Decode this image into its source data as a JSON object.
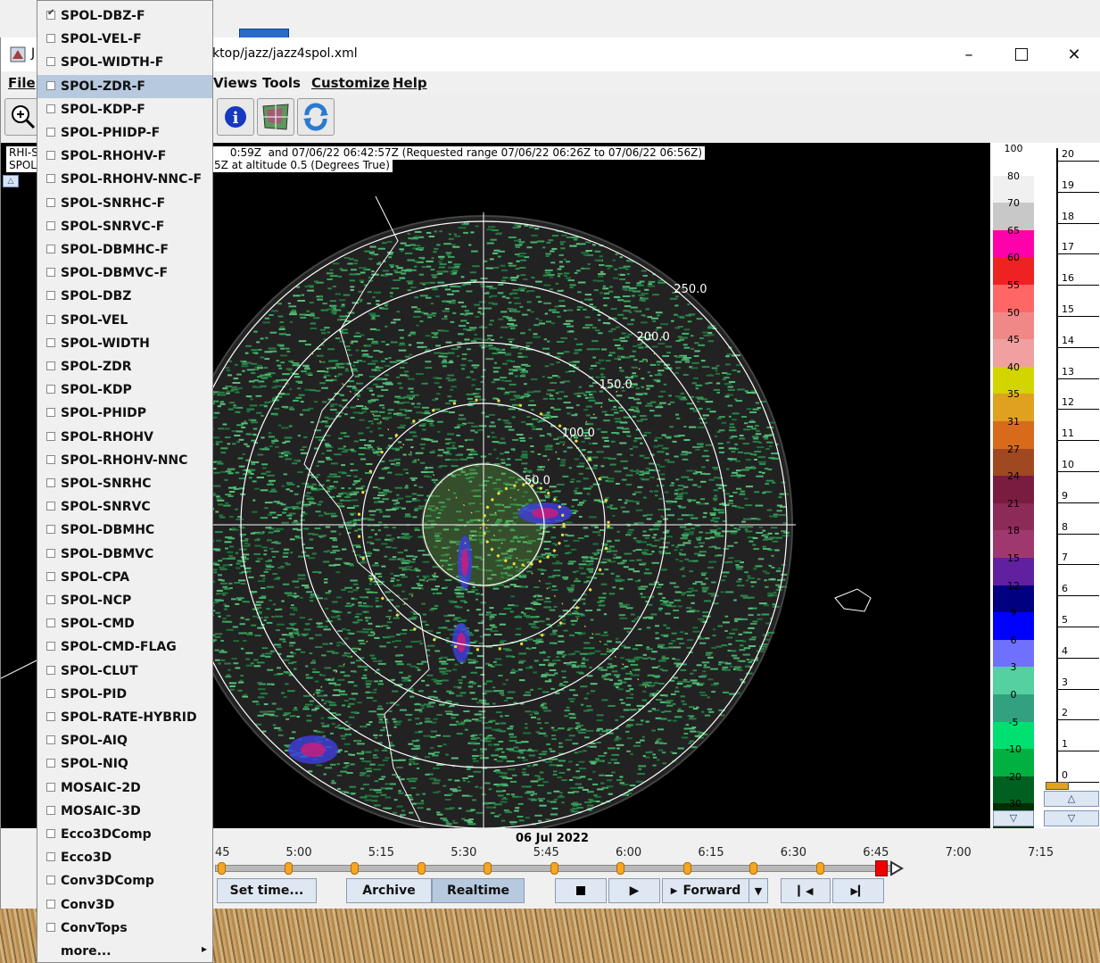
{
  "window": {
    "title_partial": "J",
    "path": "esktop/jazz/jazz4spol.xml",
    "min_icon": "minimize-icon",
    "max_icon": "maximize-icon",
    "close_icon": "close-icon"
  },
  "menubar": {
    "file": "File",
    "views": "Views",
    "tools": "Tools",
    "customize": "Customize",
    "help": "Help"
  },
  "toolbar": {
    "icons": [
      "zoom-in-icon",
      "info-icon",
      "overlay-icon",
      "refresh-icon"
    ]
  },
  "info": {
    "prefix1": "RHI-S",
    "line1": "0:59Z  and 07/06/22 06:42:57Z (Requested range 07/06/22 06:26Z to 07/06/22 06:56Z)",
    "prefix2": "SPOL",
    "line2": "5Z at altitude 0.5 (Degrees True)"
  },
  "radar": {
    "ring_labels": [
      "50.0",
      "100.0",
      "150.0",
      "200.0",
      "250.0"
    ]
  },
  "colorscale": {
    "labels": [
      "100",
      "80",
      "70",
      "65",
      "60",
      "55",
      "50",
      "45",
      "40",
      "35",
      "31",
      "27",
      "24",
      "21",
      "18",
      "15",
      "12",
      "9",
      "6",
      "3",
      "0",
      "-5",
      "-10",
      "-20",
      "-30"
    ],
    "colors": [
      "#ffffff",
      "#f0f0f0",
      "#c8c8c8",
      "#ff00aa",
      "#ee2222",
      "#ff6666",
      "#f08888",
      "#f0a0a0",
      "#d4d400",
      "#e0a020",
      "#d86a1c",
      "#a04820",
      "#7a1c40",
      "#8c2a58",
      "#a03870",
      "#6020a0",
      "#000080",
      "#0000ff",
      "#7070ff",
      "#55d0a0",
      "#33a080",
      "#00e070",
      "#00b040",
      "#006020",
      "#003000"
    ]
  },
  "altitude": {
    "labels": [
      "20",
      "19",
      "18",
      "17",
      "16",
      "15",
      "14",
      "13",
      "12",
      "11",
      "10",
      "9",
      "8",
      "7",
      "6",
      "5",
      "4",
      "3",
      "2",
      "1",
      "0"
    ]
  },
  "time": {
    "date": "06 Jul 2022",
    "labels": [
      "45",
      "5:00",
      "5:15",
      "5:30",
      "5:45",
      "6:00",
      "6:15",
      "6:30",
      "6:45",
      "7:00",
      "7:15"
    ],
    "buttons": {
      "set_time": "Set time...",
      "archive": "Archive",
      "realtime": "Realtime",
      "forward": "Forward"
    }
  },
  "field_menu": {
    "items": [
      {
        "label": "SPOL-DBZ-F",
        "checked": true
      },
      {
        "label": "SPOL-VEL-F"
      },
      {
        "label": "SPOL-WIDTH-F"
      },
      {
        "label": "SPOL-ZDR-F",
        "selected": true
      },
      {
        "label": "SPOL-KDP-F"
      },
      {
        "label": "SPOL-PHIDP-F"
      },
      {
        "label": "SPOL-RHOHV-F"
      },
      {
        "label": "SPOL-RHOHV-NNC-F"
      },
      {
        "label": "SPOL-SNRHC-F"
      },
      {
        "label": "SPOL-SNRVC-F"
      },
      {
        "label": "SPOL-DBMHC-F"
      },
      {
        "label": "SPOL-DBMVC-F"
      },
      {
        "label": "SPOL-DBZ"
      },
      {
        "label": "SPOL-VEL"
      },
      {
        "label": "SPOL-WIDTH"
      },
      {
        "label": "SPOL-ZDR"
      },
      {
        "label": "SPOL-KDP"
      },
      {
        "label": "SPOL-PHIDP"
      },
      {
        "label": "SPOL-RHOHV"
      },
      {
        "label": "SPOL-RHOHV-NNC"
      },
      {
        "label": "SPOL-SNRHC"
      },
      {
        "label": "SPOL-SNRVC"
      },
      {
        "label": "SPOL-DBMHC"
      },
      {
        "label": "SPOL-DBMVC"
      },
      {
        "label": "SPOL-CPA"
      },
      {
        "label": "SPOL-NCP"
      },
      {
        "label": "SPOL-CMD"
      },
      {
        "label": "SPOL-CMD-FLAG"
      },
      {
        "label": "SPOL-CLUT"
      },
      {
        "label": "SPOL-PID"
      },
      {
        "label": "SPOL-RATE-HYBRID"
      },
      {
        "label": "SPOL-AIQ"
      },
      {
        "label": "SPOL-NIQ"
      },
      {
        "label": "MOSAIC-2D"
      },
      {
        "label": "MOSAIC-3D"
      },
      {
        "label": "Ecco3DComp"
      },
      {
        "label": "Ecco3D"
      },
      {
        "label": "Conv3DComp"
      },
      {
        "label": "Conv3D"
      },
      {
        "label": "ConvTops"
      },
      {
        "label": "more...",
        "submenu": true
      }
    ]
  }
}
